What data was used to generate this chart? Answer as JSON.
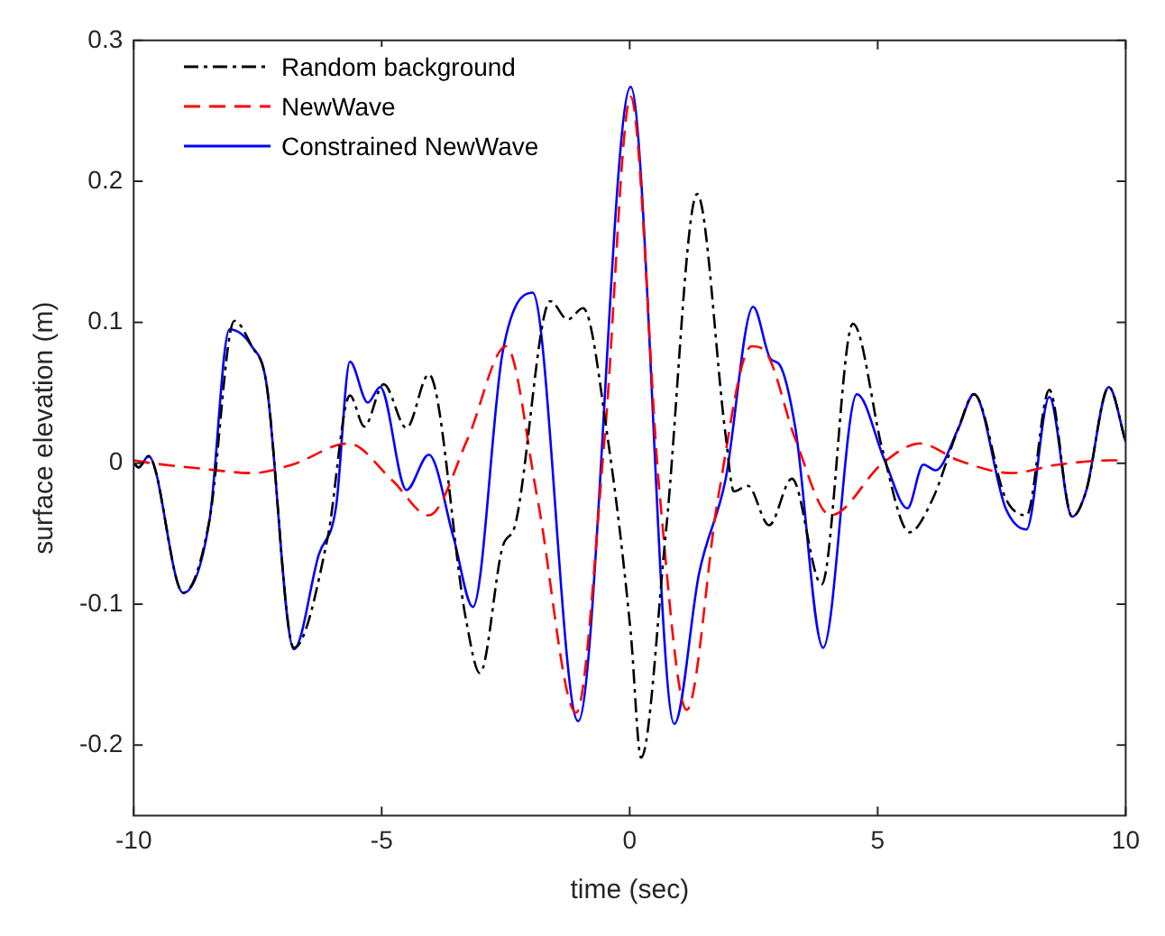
{
  "chart_data": {
    "type": "line",
    "xlabel": "time (sec)",
    "ylabel": "surface elevation (m)",
    "xlim": [
      -10,
      10
    ],
    "xticks": [
      -10,
      -5,
      0,
      5,
      10
    ],
    "ylim": [
      -0.25,
      0.3
    ],
    "yticks": [
      -0.2,
      -0.1,
      0,
      0.1,
      0.2,
      0.3
    ],
    "grid": false,
    "legend": "top left",
    "marker": "none",
    "series": [
      {
        "name": "Random background",
        "color": "#000000",
        "line_style": "dashdot",
        "x": [
          -10,
          -9.9,
          -9.7,
          -9.0,
          -8.47,
          -7.97,
          -7.62,
          -7.33,
          -6.77,
          -6.09,
          -5.64,
          -5.35,
          -4.96,
          -4.5,
          -4.05,
          -3.3,
          -3.02,
          -2.56,
          -2.31,
          -1.6,
          -1.25,
          -0.94,
          -0.44,
          0.02,
          0.23,
          0.73,
          1.36,
          1.93,
          2.1,
          2.38,
          2.81,
          3.27,
          3.87,
          4.5,
          5.1,
          5.64,
          6.1,
          6.63,
          6.94,
          7.58,
          8.0,
          8.46,
          8.92,
          9.2,
          9.66,
          10
        ],
        "values": [
          0,
          -0.003,
          0.005,
          -0.092,
          -0.04,
          0.101,
          0.083,
          0.058,
          -0.131,
          -0.053,
          0.048,
          0.026,
          0.056,
          0.025,
          0.063,
          -0.111,
          -0.149,
          -0.059,
          -0.044,
          0.115,
          0.102,
          0.11,
          0.017,
          -0.12,
          -0.209,
          -0.049,
          0.191,
          0.021,
          -0.02,
          -0.016,
          -0.044,
          -0.011,
          -0.086,
          0.099,
          0.009,
          -0.049,
          -0.026,
          0.025,
          0.049,
          -0.025,
          -0.037,
          0.052,
          -0.038,
          -0.02,
          0.054,
          0.015
        ]
      },
      {
        "name": "NewWave",
        "color": "#ff0000",
        "line_style": "dashed",
        "x": [
          -10,
          -9.63,
          -8.6,
          -7.61,
          -6.8,
          -5.67,
          -4.79,
          -4.05,
          -3.27,
          -2.49,
          -1.86,
          -1.08,
          -0.5,
          0.02,
          0.6,
          1.15,
          1.78,
          2.46,
          2.74,
          3.34,
          4.05,
          5.1,
          5.85,
          6.63,
          7.69,
          8.64,
          9.7,
          10
        ],
        "values": [
          0.002,
          0,
          -0.004,
          -0.007,
          -0.001,
          0.014,
          -0.012,
          -0.037,
          0.017,
          0.083,
          -0.025,
          -0.177,
          0.02,
          0.26,
          -0.02,
          -0.175,
          -0.025,
          0.083,
          0.079,
          0.017,
          -0.037,
          0,
          0.014,
          0.002,
          -0.007,
          -0.001,
          0.002,
          0.002
        ]
      },
      {
        "name": "Constrained NewWave",
        "color": "#0000ff",
        "line_style": "solid",
        "x": [
          -10,
          -9.9,
          -9.7,
          -9.0,
          -8.47,
          -8.07,
          -7.62,
          -7.33,
          -6.77,
          -6.27,
          -5.92,
          -5.64,
          -5.28,
          -5.03,
          -4.5,
          -4.05,
          -3.55,
          -3.16,
          -2.56,
          -1.96,
          -1.04,
          0.02,
          0.9,
          1.4,
          1.93,
          2.49,
          2.84,
          3.02,
          3.34,
          3.9,
          4.58,
          5.14,
          5.6,
          5.92,
          6.17,
          6.63,
          6.94,
          7.58,
          8.0,
          8.46,
          8.92,
          9.2,
          9.66,
          10
        ],
        "values": [
          0,
          -0.003,
          0.005,
          -0.092,
          -0.04,
          0.095,
          0.083,
          0.058,
          -0.132,
          -0.065,
          -0.031,
          0.072,
          0.043,
          0.054,
          -0.019,
          0.006,
          -0.053,
          -0.102,
          0.079,
          0.121,
          -0.183,
          0.267,
          -0.185,
          -0.078,
          -0.012,
          0.111,
          0.074,
          0.07,
          0.025,
          -0.131,
          0.049,
          0.002,
          -0.032,
          -0.001,
          -0.005,
          0.025,
          0.049,
          -0.032,
          -0.047,
          0.047,
          -0.038,
          -0.02,
          0.054,
          0.015
        ]
      }
    ]
  }
}
